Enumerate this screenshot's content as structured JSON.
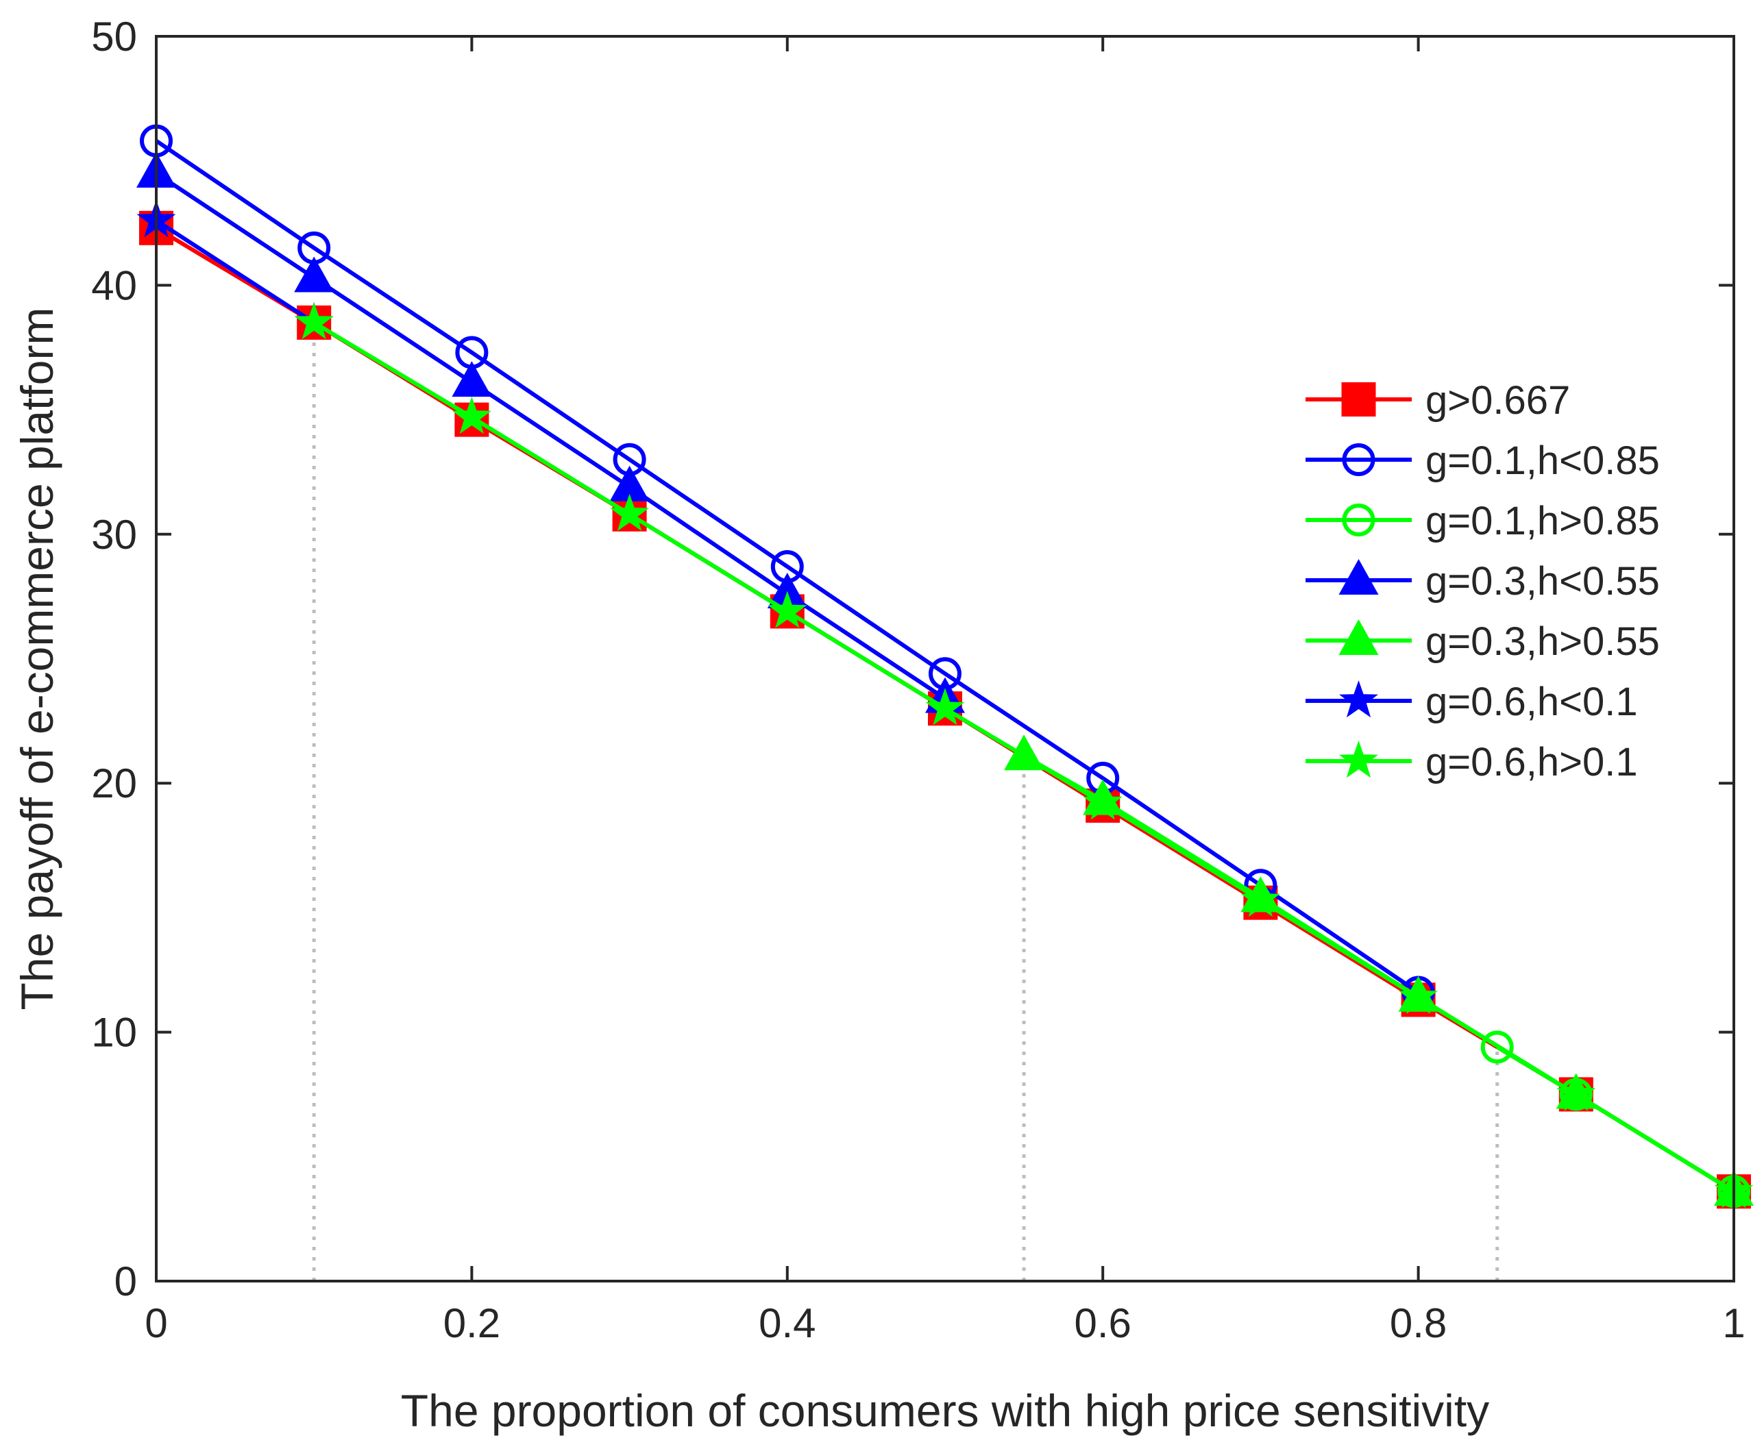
{
  "chart_data": {
    "type": "line",
    "title": "",
    "xlabel": "The proportion of consumers with high price sensitivity",
    "ylabel": "The payoff of e-commerce platform",
    "xlim": [
      0,
      1
    ],
    "ylim": [
      0,
      50
    ],
    "xticks": [
      0,
      0.2,
      0.4,
      0.6,
      0.8,
      1
    ],
    "xtick_labels": [
      "0",
      "0.2",
      "0.4",
      "0.6",
      "0.8",
      "1"
    ],
    "yticks": [
      0,
      10,
      20,
      30,
      40,
      50
    ],
    "ytick_labels": [
      "0",
      "10",
      "20",
      "30",
      "40",
      "50"
    ],
    "grid": false,
    "legend_position": "right",
    "reference_lines": [
      {
        "x": 0.1,
        "y": 38.5
      },
      {
        "x": 0.55,
        "y": 21.1
      },
      {
        "x": 0.85,
        "y": 9.4
      }
    ],
    "series": [
      {
        "name": "g>0.667",
        "color": "#ff0000",
        "marker": "square",
        "x": [
          0,
          0.1,
          0.2,
          0.3,
          0.4,
          0.5,
          0.6,
          0.7,
          0.8,
          0.9,
          1.0
        ],
        "y": [
          42.3,
          38.5,
          34.6,
          30.8,
          26.9,
          23.0,
          19.1,
          15.2,
          11.3,
          7.5,
          3.6
        ]
      },
      {
        "name": "g=0.1,h<0.85",
        "color": "#0000ff",
        "marker": "circle",
        "x": [
          0,
          0.1,
          0.2,
          0.3,
          0.4,
          0.5,
          0.6,
          0.7,
          0.8
        ],
        "y": [
          45.8,
          41.5,
          37.3,
          33.0,
          28.7,
          24.4,
          20.2,
          15.9,
          11.6
        ]
      },
      {
        "name": "g=0.1,h>0.85",
        "color": "#00ff00",
        "marker": "circle",
        "x": [
          0.85,
          0.9,
          1.0
        ],
        "y": [
          9.4,
          7.5,
          3.6
        ]
      },
      {
        "name": "g=0.3,h<0.55",
        "color": "#0000ff",
        "marker": "triangle",
        "x": [
          0,
          0.1,
          0.2,
          0.3,
          0.4,
          0.5
        ],
        "y": [
          44.5,
          40.3,
          36.1,
          31.9,
          27.6,
          23.4
        ]
      },
      {
        "name": "g=0.3,h>0.55",
        "color": "#00ff00",
        "marker": "triangle",
        "x": [
          0.55,
          0.6,
          0.7,
          0.8,
          0.9,
          1.0
        ],
        "y": [
          21.1,
          19.3,
          15.4,
          11.4,
          7.5,
          3.6
        ]
      },
      {
        "name": "g=0.6,h<0.1",
        "color": "#0000ff",
        "marker": "star",
        "x": [
          0,
          0.1
        ],
        "y": [
          42.6,
          38.5
        ]
      },
      {
        "name": "g=0.6,h>0.1",
        "color": "#00ff00",
        "marker": "star",
        "x": [
          0.1,
          0.2,
          0.3,
          0.4,
          0.5,
          0.6,
          0.7,
          0.8,
          0.9,
          1.0
        ],
        "y": [
          38.5,
          34.7,
          30.8,
          26.9,
          23.0,
          19.2,
          15.3,
          11.4,
          7.5,
          3.6
        ]
      }
    ]
  }
}
